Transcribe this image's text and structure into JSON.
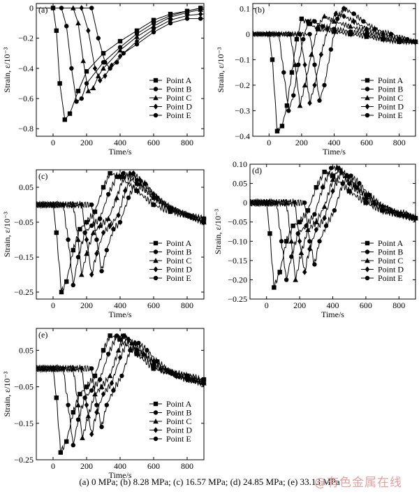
{
  "caption": "(a) 0 MPa; (b) 8.28 MPa; (c) 16.57 MPa; (d) 24.85 MPa; (e) 33.13 MPa",
  "watermark": "@有色金属在线",
  "chart_data": [
    {
      "type": "line",
      "panel": "(a)",
      "xlabel": "Time/s",
      "ylabel": "Strain, ε/10⁻³",
      "xlim": [
        -100,
        900
      ],
      "ylim": [
        -0.85,
        0.03
      ],
      "xticks": [
        0,
        200,
        400,
        600,
        800
      ],
      "yticks": [
        0,
        -0.2,
        -0.4,
        -0.6,
        -0.8
      ],
      "ytick_labels": [
        "0",
        "−0.2",
        "−0.4",
        "−0.6",
        "−0.8"
      ],
      "legend": "bottom-right",
      "series": [
        {
          "name": "Point A",
          "marker": "square",
          "x": [
            -100,
            0,
            20,
            40,
            70,
            100,
            150,
            200,
            300,
            400,
            500,
            600,
            700,
            800,
            880
          ],
          "y": [
            0,
            0,
            -0.15,
            -0.5,
            -0.74,
            -0.7,
            -0.55,
            -0.42,
            -0.3,
            -0.22,
            -0.15,
            -0.08,
            -0.04,
            -0.02,
            0
          ]
        },
        {
          "name": "Point B",
          "marker": "circle",
          "x": [
            -100,
            50,
            80,
            110,
            140,
            170,
            200,
            300,
            400,
            500,
            600,
            700,
            800,
            880
          ],
          "y": [
            0,
            0,
            -0.12,
            -0.4,
            -0.62,
            -0.6,
            -0.5,
            -0.36,
            -0.26,
            -0.17,
            -0.1,
            -0.05,
            -0.02,
            0
          ]
        },
        {
          "name": "Point C",
          "marker": "triangle",
          "x": [
            -100,
            120,
            150,
            180,
            210,
            240,
            270,
            300,
            400,
            500,
            600,
            700,
            800,
            880
          ],
          "y": [
            0,
            0,
            -0.1,
            -0.35,
            -0.55,
            -0.53,
            -0.45,
            -0.4,
            -0.28,
            -0.19,
            -0.12,
            -0.06,
            -0.03,
            -0.01
          ]
        },
        {
          "name": "Point D",
          "marker": "diamond",
          "x": [
            -100,
            170,
            210,
            250,
            280,
            310,
            350,
            400,
            500,
            600,
            700,
            800,
            880
          ],
          "y": [
            0,
            0,
            -0.15,
            -0.4,
            -0.48,
            -0.45,
            -0.38,
            -0.32,
            -0.22,
            -0.14,
            -0.08,
            -0.05,
            -0.04
          ]
        },
        {
          "name": "Point E",
          "marker": "circle",
          "x": [
            -100,
            230,
            270,
            310,
            340,
            380,
            420,
            500,
            600,
            700,
            800,
            880
          ],
          "y": [
            0,
            0,
            -0.2,
            -0.36,
            -0.4,
            -0.36,
            -0.3,
            -0.24,
            -0.16,
            -0.1,
            -0.07,
            -0.07
          ]
        }
      ]
    },
    {
      "type": "line",
      "panel": "(b)",
      "xlabel": "Time/s",
      "ylabel": "Strain, ε/10⁻³",
      "xlim": [
        -100,
        900
      ],
      "ylim": [
        -0.4,
        0.12
      ],
      "xticks": [
        0,
        200,
        400,
        600,
        800
      ],
      "yticks": [
        0.1,
        0,
        -0.1,
        -0.2,
        -0.3,
        -0.4
      ],
      "ytick_labels": [
        "0.1",
        "0",
        "−0.1",
        "−0.2",
        "−0.3",
        "−0.4"
      ],
      "legend": "bottom-right",
      "series": [
        {
          "name": "Point A",
          "marker": "square",
          "x": [
            -100,
            0,
            20,
            50,
            80,
            110,
            140,
            170,
            200,
            250,
            300,
            400,
            500,
            600,
            700,
            800,
            900
          ],
          "y": [
            0,
            0,
            -0.1,
            -0.38,
            -0.36,
            -0.28,
            -0.15,
            -0.02,
            0.06,
            0.04,
            0.02,
            0.01,
            0,
            -0.01,
            -0.02,
            -0.03,
            -0.03
          ]
        },
        {
          "name": "Point B",
          "marker": "circle",
          "x": [
            -100,
            60,
            90,
            120,
            150,
            180,
            210,
            240,
            280,
            330,
            400,
            500,
            600,
            700,
            800,
            900
          ],
          "y": [
            0,
            0,
            -0.15,
            -0.3,
            -0.24,
            -0.12,
            -0.02,
            0.05,
            0.05,
            0.03,
            0.02,
            0.01,
            0,
            -0.02,
            -0.03,
            -0.03
          ]
        },
        {
          "name": "Point C",
          "marker": "triangle",
          "x": [
            -100,
            130,
            160,
            190,
            220,
            260,
            300,
            340,
            400,
            500,
            600,
            700,
            800,
            900
          ],
          "y": [
            0,
            0,
            -0.12,
            -0.28,
            -0.2,
            -0.08,
            0.03,
            0.07,
            0.05,
            0.03,
            0.01,
            -0.01,
            -0.02,
            -0.03
          ]
        },
        {
          "name": "Point D",
          "marker": "diamond",
          "x": [
            -100,
            190,
            220,
            250,
            280,
            320,
            360,
            410,
            460,
            520,
            600,
            700,
            800,
            900
          ],
          "y": [
            0,
            0,
            -0.12,
            -0.27,
            -0.2,
            -0.08,
            0.02,
            0.08,
            0.07,
            0.05,
            0.02,
            0,
            -0.02,
            -0.03
          ]
        },
        {
          "name": "Point E",
          "marker": "circle",
          "x": [
            -100,
            250,
            280,
            310,
            340,
            380,
            420,
            460,
            520,
            580,
            650,
            750,
            850,
            900
          ],
          "y": [
            0,
            0,
            -0.12,
            -0.26,
            -0.2,
            -0.06,
            0.06,
            0.1,
            0.08,
            0.05,
            0.02,
            0,
            -0.02,
            -0.03
          ]
        }
      ]
    },
    {
      "type": "line",
      "panel": "(c)",
      "xlabel": "Time/s",
      "ylabel": "Strain, ε/10⁻³",
      "xlim": [
        -100,
        900
      ],
      "ylim": [
        -0.27,
        0.1
      ],
      "xticks": [
        0,
        200,
        400,
        600,
        800
      ],
      "yticks": [
        0.05,
        -0.05,
        -0.15,
        -0.25
      ],
      "ytick_labels": [
        "0.05",
        "−0.05",
        "−0.15",
        "−0.25"
      ],
      "legend": "bottom-right",
      "series": [
        {
          "name": "Point A",
          "marker": "square",
          "x": [
            -100,
            0,
            20,
            50,
            80,
            120,
            160,
            200,
            250,
            300,
            340,
            400,
            500,
            600,
            700,
            800,
            900
          ],
          "y": [
            0,
            0,
            -0.08,
            -0.25,
            -0.22,
            -0.13,
            -0.07,
            -0.05,
            -0.02,
            0.05,
            0.09,
            0.08,
            0.04,
            0,
            -0.02,
            -0.03,
            -0.04
          ]
        },
        {
          "name": "Point B",
          "marker": "circle",
          "x": [
            -100,
            60,
            90,
            120,
            150,
            190,
            230,
            280,
            330,
            380,
            420,
            500,
            600,
            700,
            800,
            900
          ],
          "y": [
            0,
            0,
            -0.1,
            -0.23,
            -0.15,
            -0.08,
            -0.06,
            -0.04,
            0.03,
            0.08,
            0.09,
            0.06,
            0.02,
            -0.01,
            -0.03,
            -0.04
          ]
        },
        {
          "name": "Point C",
          "marker": "triangle",
          "x": [
            -100,
            120,
            150,
            170,
            200,
            240,
            280,
            330,
            380,
            420,
            460,
            520,
            600,
            700,
            800,
            900
          ],
          "y": [
            0,
            0,
            -0.1,
            -0.2,
            -0.14,
            -0.08,
            -0.06,
            -0.04,
            0.02,
            0.08,
            0.09,
            0.06,
            0.02,
            -0.01,
            -0.03,
            -0.05
          ]
        },
        {
          "name": "Point D",
          "marker": "diamond",
          "x": [
            -100,
            170,
            200,
            230,
            260,
            300,
            340,
            390,
            430,
            480,
            520,
            600,
            700,
            800,
            900
          ],
          "y": [
            0,
            0,
            -0.1,
            -0.2,
            -0.14,
            -0.08,
            -0.06,
            -0.03,
            0.04,
            0.09,
            0.07,
            0.03,
            -0.01,
            -0.03,
            -0.05
          ]
        },
        {
          "name": "Point E",
          "marker": "circle",
          "x": [
            -100,
            230,
            260,
            290,
            320,
            360,
            400,
            450,
            500,
            550,
            620,
            700,
            800,
            900
          ],
          "y": [
            0,
            0,
            -0.1,
            -0.19,
            -0.13,
            -0.07,
            -0.05,
            0.02,
            0.07,
            0.06,
            0.02,
            -0.01,
            -0.03,
            -0.05
          ]
        }
      ]
    },
    {
      "type": "line",
      "panel": "(d)",
      "xlabel": "Time/s",
      "ylabel": "Strain, ε/10⁻³",
      "xlim": [
        -100,
        900
      ],
      "ylim": [
        -0.25,
        0.1
      ],
      "xticks": [
        0,
        200,
        400,
        600,
        800
      ],
      "yticks": [
        0.1,
        0.05,
        0,
        -0.05,
        -0.1,
        -0.15,
        -0.2,
        -0.25
      ],
      "ytick_labels": [
        "0.10",
        "0.05",
        "0",
        "−0.05",
        "−0.10",
        "−0.15",
        "−0.20",
        "−0.25"
      ],
      "legend": "bottom-right",
      "series": [
        {
          "name": "Point A",
          "marker": "square",
          "x": [
            -100,
            0,
            20,
            45,
            80,
            120,
            160,
            200,
            250,
            300,
            350,
            400,
            500,
            600,
            700,
            800,
            900
          ],
          "y": [
            0,
            0,
            -0.08,
            -0.22,
            -0.18,
            -0.1,
            -0.06,
            -0.05,
            -0.02,
            0.04,
            0.08,
            0.07,
            0.03,
            0,
            -0.02,
            -0.03,
            -0.04
          ]
        },
        {
          "name": "Point B",
          "marker": "circle",
          "x": [
            -100,
            60,
            90,
            120,
            150,
            190,
            240,
            290,
            340,
            390,
            430,
            500,
            600,
            700,
            800,
            900
          ],
          "y": [
            0,
            0,
            -0.1,
            -0.2,
            -0.14,
            -0.08,
            -0.06,
            -0.03,
            0.04,
            0.09,
            0.09,
            0.05,
            0.01,
            -0.02,
            -0.03,
            -0.04
          ]
        },
        {
          "name": "Point C",
          "marker": "triangle",
          "x": [
            -100,
            120,
            150,
            175,
            210,
            250,
            300,
            350,
            400,
            440,
            480,
            550,
            650,
            750,
            850,
            900
          ],
          "y": [
            0,
            0,
            -0.1,
            -0.2,
            -0.13,
            -0.07,
            -0.05,
            -0.01,
            0.06,
            0.09,
            0.07,
            0.04,
            0,
            -0.02,
            -0.03,
            -0.04
          ]
        },
        {
          "name": "Point D",
          "marker": "diamond",
          "x": [
            -100,
            170,
            200,
            230,
            260,
            300,
            350,
            400,
            450,
            490,
            540,
            600,
            700,
            800,
            900
          ],
          "y": [
            0,
            0,
            -0.1,
            -0.18,
            -0.12,
            -0.07,
            -0.04,
            0.03,
            0.08,
            0.07,
            0.04,
            0.02,
            -0.01,
            -0.03,
            -0.04
          ]
        },
        {
          "name": "Point E",
          "marker": "circle",
          "x": [
            -100,
            230,
            260,
            290,
            320,
            360,
            410,
            460,
            510,
            560,
            620,
            700,
            800,
            900
          ],
          "y": [
            0,
            0,
            -0.1,
            -0.16,
            -0.1,
            -0.06,
            -0.02,
            0.05,
            0.07,
            0.05,
            0.02,
            -0.01,
            -0.03,
            -0.04
          ]
        }
      ]
    },
    {
      "type": "line",
      "panel": "(e)",
      "xlabel": "Time/s",
      "ylabel": "Strain, ε/10⁻³",
      "xlim": [
        -100,
        900
      ],
      "ylim": [
        -0.25,
        0.11
      ],
      "xticks": [
        0,
        200,
        400,
        600,
        800
      ],
      "yticks": [
        0.05,
        -0.05,
        -0.15,
        -0.25
      ],
      "ytick_labels": [
        "0.05",
        "−0.05",
        "−0.15",
        "−0.25"
      ],
      "legend": "bottom-right",
      "series": [
        {
          "name": "Point A",
          "marker": "square",
          "x": [
            -100,
            0,
            20,
            45,
            80,
            120,
            160,
            200,
            250,
            300,
            340,
            400,
            500,
            600,
            700,
            800,
            900
          ],
          "y": [
            0,
            0,
            -0.08,
            -0.23,
            -0.2,
            -0.12,
            -0.07,
            -0.05,
            -0.02,
            0.05,
            0.09,
            0.08,
            0.04,
            0,
            -0.01,
            -0.02,
            -0.03
          ]
        },
        {
          "name": "Point B",
          "marker": "circle",
          "x": [
            -100,
            60,
            90,
            120,
            150,
            190,
            230,
            280,
            330,
            380,
            420,
            500,
            600,
            700,
            800,
            900
          ],
          "y": [
            0,
            0,
            -0.1,
            -0.21,
            -0.14,
            -0.08,
            -0.06,
            -0.03,
            0.04,
            0.09,
            0.09,
            0.05,
            0.01,
            -0.01,
            -0.02,
            -0.04
          ]
        },
        {
          "name": "Point C",
          "marker": "triangle",
          "x": [
            -100,
            120,
            150,
            175,
            210,
            250,
            290,
            340,
            390,
            430,
            470,
            540,
            640,
            740,
            840,
            900
          ],
          "y": [
            0,
            0,
            -0.1,
            -0.19,
            -0.13,
            -0.07,
            -0.05,
            -0.02,
            0.05,
            0.09,
            0.07,
            0.04,
            0,
            -0.02,
            -0.03,
            -0.04
          ]
        },
        {
          "name": "Point D",
          "marker": "diamond",
          "x": [
            -100,
            170,
            200,
            230,
            260,
            300,
            350,
            400,
            450,
            490,
            540,
            600,
            700,
            800,
            900
          ],
          "y": [
            0,
            0,
            -0.1,
            -0.18,
            -0.12,
            -0.07,
            -0.04,
            0.03,
            0.08,
            0.07,
            0.04,
            0.02,
            -0.01,
            -0.03,
            -0.04
          ]
        },
        {
          "name": "Point E",
          "marker": "circle",
          "x": [
            -100,
            230,
            260,
            290,
            320,
            360,
            410,
            460,
            510,
            560,
            620,
            700,
            800,
            900
          ],
          "y": [
            0,
            0,
            -0.1,
            -0.16,
            -0.1,
            -0.06,
            -0.02,
            0.05,
            0.07,
            0.05,
            0.02,
            -0.01,
            -0.03,
            -0.04
          ]
        }
      ]
    }
  ]
}
